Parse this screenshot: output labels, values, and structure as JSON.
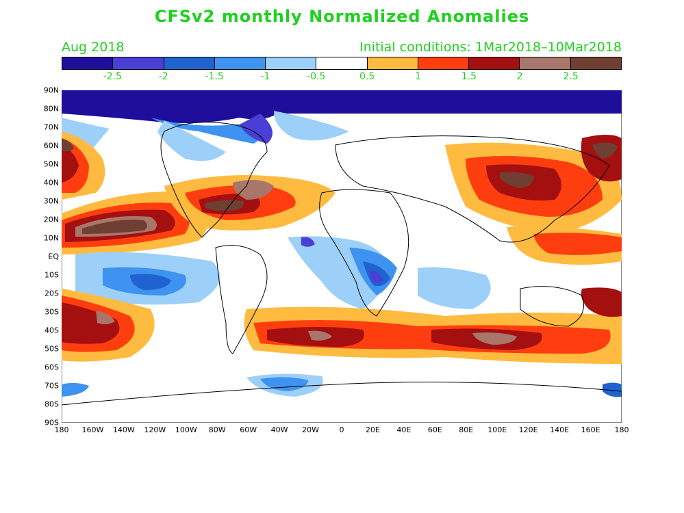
{
  "title": "CFSv2 monthly Normalized Anomalies",
  "valid_month": "Aug 2018",
  "initial_conditions": "Initial conditions: 1Mar2018–10Mar2018",
  "colorbar": {
    "colors": [
      "#1e0e9b",
      "#4a3fd4",
      "#1f63d0",
      "#3d93ef",
      "#9dd0f8",
      "#ffffff",
      "#ffbb3f",
      "#ff3e0f",
      "#a40f0f",
      "#a8766a",
      "#6e3f32"
    ],
    "labels": [
      "-2.5",
      "-2",
      "-1.5",
      "-1",
      "-0.5",
      "0.5",
      "1",
      "1.5",
      "2",
      "2.5"
    ]
  },
  "lat_labels": [
    "90N",
    "80N",
    "70N",
    "60N",
    "50N",
    "40N",
    "30N",
    "20N",
    "10N",
    "EQ",
    "10S",
    "20S",
    "30S",
    "40S",
    "50S",
    "60S",
    "70S",
    "80S",
    "90S"
  ],
  "lon_labels": [
    "180",
    "160W",
    "140W",
    "120W",
    "100W",
    "80W",
    "60W",
    "40W",
    "20W",
    "0",
    "20E",
    "40E",
    "60E",
    "80E",
    "100E",
    "120E",
    "140E",
    "160E",
    "180"
  ]
}
